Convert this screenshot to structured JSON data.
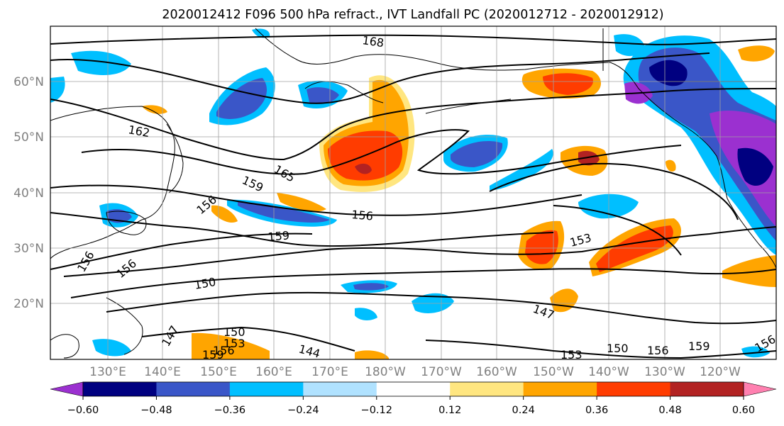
{
  "title": "2020012412 F096 500 hPa refract., IVT Landfall PC (2020012712 - 2020012912)",
  "map": {
    "projection": "PlateCarree",
    "extent": {
      "lon_min": 120,
      "lon_max": 246,
      "lat_min": 10,
      "lat_max": 70
    },
    "lat_labels": [
      {
        "lat": 60,
        "text": "60°N"
      },
      {
        "lat": 50,
        "text": "50°N"
      },
      {
        "lat": 40,
        "text": "40°N"
      },
      {
        "lat": 30,
        "text": "30°N"
      },
      {
        "lat": 20,
        "text": "20°N"
      }
    ],
    "lon_labels": [
      {
        "lon": 130,
        "text": "130°E"
      },
      {
        "lon": 140,
        "text": "140°E"
      },
      {
        "lon": 150,
        "text": "150°E"
      },
      {
        "lon": 160,
        "text": "160°E"
      },
      {
        "lon": 170,
        "text": "170°E"
      },
      {
        "lon": 180,
        "text": "180°W"
      },
      {
        "lon": 190,
        "text": "170°W"
      },
      {
        "lon": 200,
        "text": "160°W"
      },
      {
        "lon": 210,
        "text": "150°W"
      },
      {
        "lon": 220,
        "text": "140°W"
      },
      {
        "lon": 230,
        "text": "130°W"
      },
      {
        "lon": 240,
        "text": "120°W"
      }
    ],
    "gridlines": true,
    "grid_color": "#a0a0a0"
  },
  "colorbar": {
    "colors": [
      "#9b30d0",
      "#000080",
      "#3a56c8",
      "#00bfff",
      "#b0e2ff",
      "#ffffff",
      "#ffe680",
      "#ffa500",
      "#ff3c00",
      "#b22222",
      "#ff80b0"
    ],
    "ticks": [
      "−0.60",
      "−0.48",
      "−0.36",
      "−0.24",
      "−0.12",
      "0.12",
      "0.24",
      "0.36",
      "0.48",
      "0.60"
    ],
    "extend": "both"
  },
  "contour_labels": [
    {
      "text": "168"
    },
    {
      "text": "162"
    },
    {
      "text": "165"
    },
    {
      "text": "159"
    },
    {
      "text": "156"
    },
    {
      "text": "156"
    },
    {
      "text": "159"
    },
    {
      "text": "153"
    },
    {
      "text": "156"
    },
    {
      "text": "156"
    },
    {
      "text": "150"
    },
    {
      "text": "147"
    },
    {
      "text": "147"
    },
    {
      "text": "150"
    },
    {
      "text": "153"
    },
    {
      "text": "156"
    },
    {
      "text": "159"
    },
    {
      "text": "144"
    },
    {
      "text": "150"
    },
    {
      "text": "156"
    },
    {
      "text": "159"
    },
    {
      "text": "156"
    },
    {
      "text": "153"
    }
  ],
  "filled_regions": [
    {
      "category": 7,
      "lon": 176,
      "lat": 47,
      "color": "#ffa500"
    },
    {
      "category": 8,
      "lon": 177,
      "lat": 44,
      "color": "#ff3c00"
    },
    {
      "category": 8,
      "lon": 212,
      "lat": 60,
      "color": "#ff3c00"
    },
    {
      "category": 9,
      "lon": 220,
      "lat": 43,
      "color": "#b22222"
    },
    {
      "category": 8,
      "lon": 210,
      "lat": 31,
      "color": "#ff3c00"
    },
    {
      "category": 8,
      "lon": 225,
      "lat": 30,
      "color": "#ff3c00"
    },
    {
      "category": 2,
      "lon": 240,
      "lat": 45,
      "color": "#3a56c8"
    },
    {
      "category": 0,
      "lon": 243,
      "lat": 50,
      "color": "#9b30d0"
    },
    {
      "category": 2,
      "lon": 157,
      "lat": 57,
      "color": "#3a56c8"
    },
    {
      "category": 3,
      "lon": 165,
      "lat": 36,
      "color": "#00bfff"
    },
    {
      "category": 2,
      "lon": 196,
      "lat": 47,
      "color": "#3a56c8"
    }
  ]
}
